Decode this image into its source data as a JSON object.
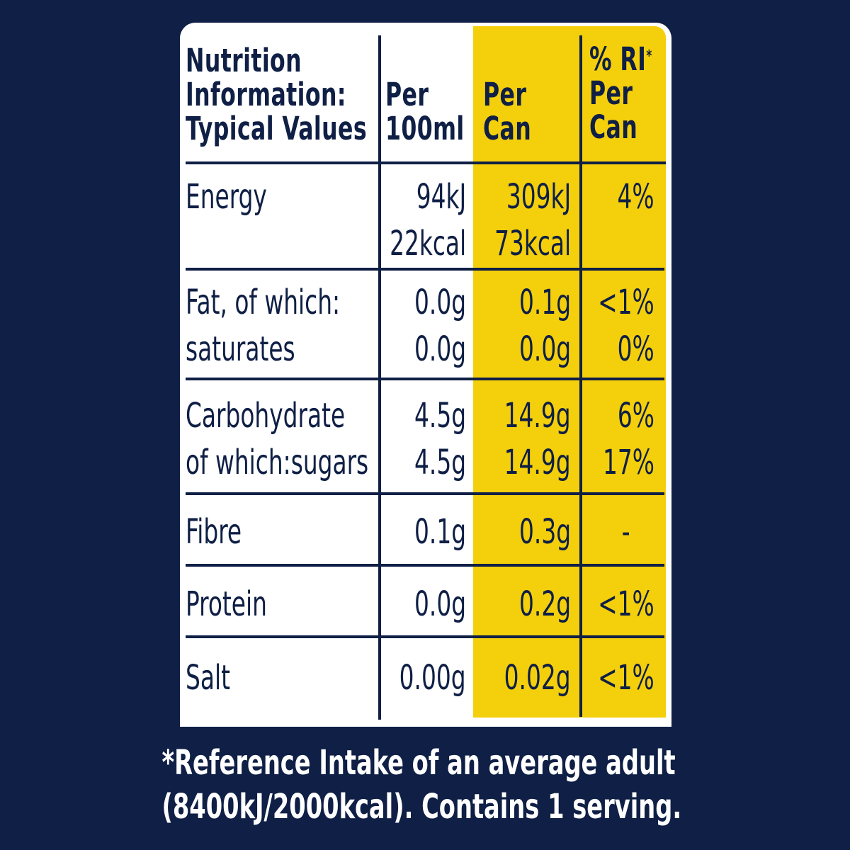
{
  "header": {
    "information": [
      "Nutrition",
      "Information:",
      "Typical Values"
    ],
    "per_100ml": [
      "Per",
      "100ml"
    ],
    "per_can": [
      "Per",
      "Can"
    ],
    "ri_per_can": [
      "% RI",
      "*",
      "Per",
      "Can"
    ]
  },
  "rows": [
    {
      "label": [
        "Energy"
      ],
      "per_100ml": [
        "94kJ",
        "22kcal"
      ],
      "per_can": [
        "309kJ",
        "73kcal"
      ],
      "ri": [
        "4%"
      ]
    },
    {
      "label": [
        "Fat, of which:",
        "saturates"
      ],
      "per_100ml": [
        "0.0g",
        "0.0g"
      ],
      "per_can": [
        "0.1g",
        "0.0g"
      ],
      "ri": [
        "<1%",
        "0%"
      ]
    },
    {
      "label": [
        "Carbohydrate",
        "of which:sugars"
      ],
      "per_100ml": [
        "4.5g",
        "4.5g"
      ],
      "per_can": [
        "14.9g",
        "14.9g"
      ],
      "ri": [
        "6%",
        "17%"
      ]
    },
    {
      "label": [
        "Fibre"
      ],
      "per_100ml": [
        "0.1g"
      ],
      "per_can": [
        "0.3g"
      ],
      "ri": [
        "-"
      ]
    },
    {
      "label": [
        "Protein"
      ],
      "per_100ml": [
        "0.0g"
      ],
      "per_can": [
        "0.2g"
      ],
      "ri": [
        "<1%"
      ]
    },
    {
      "label": [
        "Salt"
      ],
      "per_100ml": [
        "0.00g"
      ],
      "per_can": [
        "0.02g"
      ],
      "ri": [
        "<1%"
      ]
    }
  ],
  "footnote": [
    "*Reference Intake of an average adult",
    "(8400kJ/2000kcal). Contains 1 serving."
  ],
  "colors": {
    "background": "#0f1f45",
    "panel": "#ffffff",
    "highlight": "#f4cf0c",
    "text": "#0f1f45"
  }
}
